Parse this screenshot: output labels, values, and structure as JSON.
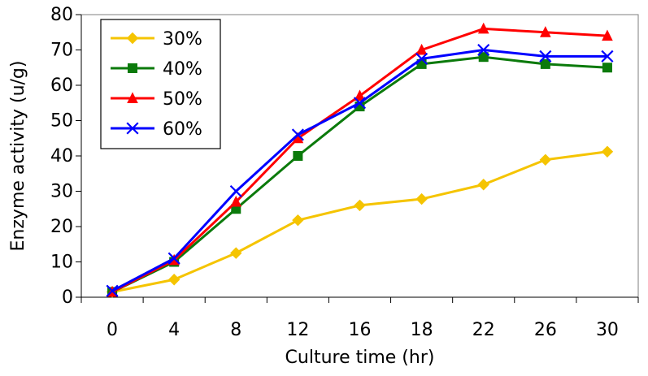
{
  "chart_data": {
    "type": "line",
    "x": [
      "0",
      "4",
      "8",
      "12",
      "16",
      "18",
      "22",
      "26",
      "30"
    ],
    "xlabel": "Culture time (hr)",
    "ylabel": "Enzyme activity (u/g)",
    "ylim": [
      0,
      80
    ],
    "yticks": [
      0,
      10,
      20,
      30,
      40,
      50,
      60,
      70,
      80
    ],
    "grid": false,
    "legend_position": "top-left",
    "series": [
      {
        "name": "30%",
        "color": "#f5c400",
        "marker": "diamond",
        "values": [
          1.5,
          5.0,
          12.5,
          21.8,
          26.0,
          27.8,
          31.9,
          38.9,
          41.2
        ]
      },
      {
        "name": "40%",
        "color": "#0b7a0b",
        "marker": "square",
        "values": [
          1.5,
          10.0,
          25.0,
          40.0,
          54.0,
          66.0,
          68.0,
          66.0,
          65.0
        ]
      },
      {
        "name": "50%",
        "color": "#ff0000",
        "marker": "triangle",
        "values": [
          1.5,
          10.5,
          27.0,
          45.0,
          57.0,
          70.0,
          76.0,
          75.0,
          74.0
        ]
      },
      {
        "name": "60%",
        "color": "#0000ff",
        "marker": "x",
        "values": [
          1.8,
          11.0,
          30.0,
          46.0,
          55.0,
          67.5,
          70.0,
          68.2,
          68.2
        ]
      }
    ]
  }
}
